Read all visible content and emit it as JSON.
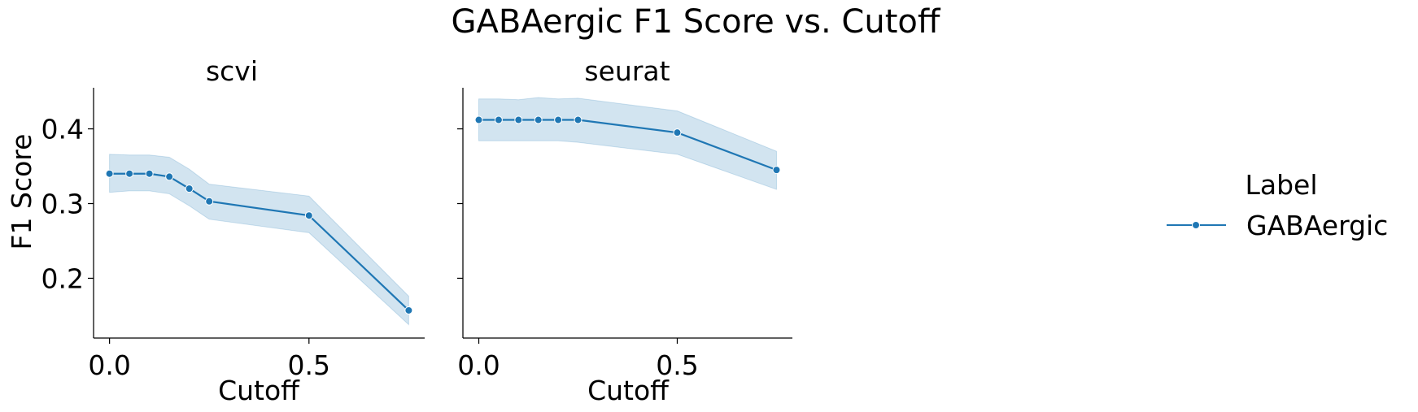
{
  "chart_data": {
    "type": "line",
    "title": "GABAergic F1 Score vs. Cutoff",
    "ylabel": "F1 Score",
    "ylim": [
      0.12,
      0.455
    ],
    "yticks": [
      0.2,
      0.3,
      0.4
    ],
    "ytick_labels": [
      "0.2",
      "0.3",
      "0.4"
    ],
    "legend": {
      "title": "Label",
      "placement": "right",
      "entries": [
        "GABAergic"
      ]
    },
    "color": "#1f77b4",
    "band_color": "#1f77b4",
    "grid": false,
    "panels": [
      {
        "title": "scvi",
        "xlabel": "Cutoff",
        "xlim": [
          -0.04,
          0.79
        ],
        "xticks": [
          0.0,
          0.5
        ],
        "xtick_labels": [
          "0.0",
          "0.5"
        ],
        "series": [
          {
            "name": "GABAergic",
            "x": [
              0.0,
              0.05,
              0.1,
              0.15,
              0.2,
              0.25,
              0.5,
              0.75
            ],
            "y": [
              0.34,
              0.34,
              0.34,
              0.336,
              0.32,
              0.303,
              0.284,
              0.157
            ],
            "ci_lower": [
              0.315,
              0.317,
              0.317,
              0.313,
              0.297,
              0.279,
              0.261,
              0.138
            ],
            "ci_upper": [
              0.366,
              0.365,
              0.365,
              0.362,
              0.346,
              0.326,
              0.31,
              0.176
            ]
          }
        ]
      },
      {
        "title": "seurat",
        "xlabel": "Cutoff",
        "xlim": [
          -0.04,
          0.79
        ],
        "xticks": [
          0.0,
          0.5
        ],
        "xtick_labels": [
          "0.0",
          "0.5"
        ],
        "series": [
          {
            "name": "GABAergic",
            "x": [
              0.0,
              0.05,
              0.1,
              0.15,
              0.2,
              0.25,
              0.5,
              0.75
            ],
            "y": [
              0.412,
              0.412,
              0.412,
              0.412,
              0.412,
              0.412,
              0.395,
              0.345
            ],
            "ci_lower": [
              0.384,
              0.384,
              0.384,
              0.384,
              0.384,
              0.382,
              0.366,
              0.319
            ],
            "ci_upper": [
              0.44,
              0.44,
              0.439,
              0.442,
              0.44,
              0.441,
              0.424,
              0.37
            ]
          }
        ]
      }
    ]
  }
}
